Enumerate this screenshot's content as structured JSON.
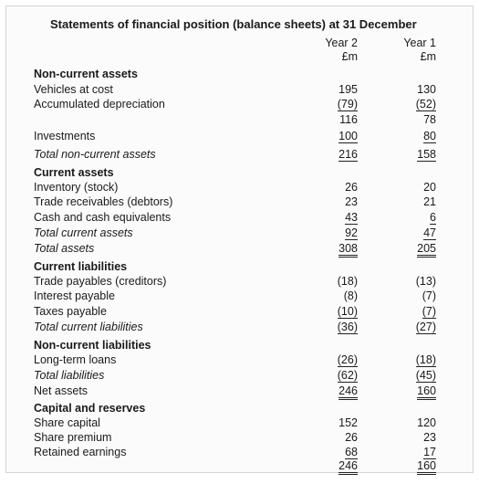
{
  "title": "Statements of financial position (balance sheets) at 31 December",
  "columns": {
    "year2": "Year 2",
    "year1": "Year 1",
    "unit2": "£m",
    "unit1": "£m"
  },
  "rows": [
    {
      "label": "Non-current assets",
      "y2": "",
      "y1": ""
    },
    {
      "label": "Vehicles at cost",
      "y2": "195",
      "y1": "130"
    },
    {
      "label": "Accumulated depreciation",
      "y2": "(79)",
      "y1": "(52)"
    },
    {
      "label": "",
      "y2": "116",
      "y1": "78"
    },
    {
      "label": "Investments",
      "y2": "100",
      "y1": "80"
    },
    {
      "label": "Total non-current assets",
      "y2": "216",
      "y1": "158"
    },
    {
      "label": "Current assets",
      "y2": "",
      "y1": ""
    },
    {
      "label": "Inventory (stock)",
      "y2": "26",
      "y1": "20"
    },
    {
      "label": "Trade receivables (debtors)",
      "y2": "23",
      "y1": "21"
    },
    {
      "label": "Cash and cash equivalents",
      "y2": "43",
      "y1": "6"
    },
    {
      "label": "Total current assets",
      "y2": "92",
      "y1": "47"
    },
    {
      "label": "Total assets",
      "y2": "308",
      "y1": "205"
    },
    {
      "label": "Current liabilities",
      "y2": "",
      "y1": ""
    },
    {
      "label": "Trade payables (creditors)",
      "y2": "(18)",
      "y1": "(13)"
    },
    {
      "label": "Interest payable",
      "y2": "(8)",
      "y1": "(7)"
    },
    {
      "label": "Taxes payable",
      "y2": "(10)",
      "y1": "(7)"
    },
    {
      "label": "Total current liabilities",
      "y2": "(36)",
      "y1": "(27)"
    },
    {
      "label": "Non-current liabilities",
      "y2": "",
      "y1": ""
    },
    {
      "label": "Long-term loans",
      "y2": "(26)",
      "y1": "(18)"
    },
    {
      "label": "Total liabilities",
      "y2": "(62)",
      "y1": "(45)"
    },
    {
      "label": "Net assets",
      "y2": "246",
      "y1": "160"
    },
    {
      "label": "Capital and reserves",
      "y2": "",
      "y1": ""
    },
    {
      "label": "Share capital",
      "y2": "152",
      "y1": "120"
    },
    {
      "label": "Share premium",
      "y2": "26",
      "y1": "23"
    },
    {
      "label": "Retained earnings",
      "y2": "68",
      "y1": "17"
    },
    {
      "label": "",
      "y2": "246",
      "y1": "160"
    }
  ]
}
